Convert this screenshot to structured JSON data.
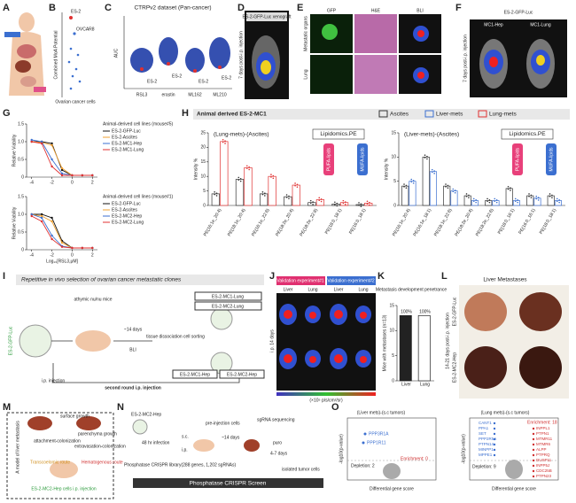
{
  "panel_labels": [
    "A",
    "B",
    "C",
    "D",
    "E",
    "F",
    "G",
    "H",
    "I",
    "J",
    "K",
    "L",
    "M",
    "N",
    "O"
  ],
  "B": {
    "ylabel": "Combined MoA Potential",
    "xlabel": "Ovarian cancer cells",
    "points": [
      "ES-2",
      "OVCAR8"
    ]
  },
  "C": {
    "title": "CTRPv2 dataset (Pan-cancer)",
    "ylabel": "AUC",
    "categories": [
      "RSL3",
      "erastin",
      "ML162",
      "ML210"
    ],
    "highlight": [
      "ES-2",
      "ES-2",
      "ES-2",
      "ES-2"
    ]
  },
  "D": {
    "title": "ES-2-GFP-Luc xenograft",
    "side": "7 days post-i.p. injection"
  },
  "E": {
    "columns": [
      "GFP",
      "H&E",
      "BLI"
    ],
    "rows": [
      "Metastatic organs",
      "Lung"
    ]
  },
  "F": {
    "title": "ES-2-GFP-Luc",
    "columns": [
      "MC1-Hep",
      "MC1-Lung"
    ],
    "side": "7 days post-i.p. injection"
  },
  "H": {
    "legend_title": "Animal derived ES-2-MC1"
  },
  "I": {
    "title": "Repetitive in vivo selection of ovarian cancer metastatic clones",
    "cell": "ES-2-GFP-Luc",
    "mice": "athymic nu/nu mice",
    "days": "~14 days",
    "bli": "BLI",
    "sorting": "tissue dissociation cell sorting",
    "first": "i.p. injection",
    "second": "second round i.p. injection",
    "clones": [
      "ES-2-MC1-Lung",
      "ES-2-MC2-Lung",
      "ES-2-MC1-Hep",
      "ES-2-MC2-Hep"
    ]
  },
  "J": {
    "experiments": [
      "Validation experiment#1",
      "Validation experiment#2"
    ],
    "columns": [
      "Liver",
      "Lung",
      "Liver",
      "Lung"
    ],
    "side": "i.p. 14 days",
    "scale": "(×10⁵ p/s/cm²/sr)"
  },
  "L": {
    "title": "Liver Metastases",
    "rows": [
      "ES-2-GFP-Luc",
      "ES-2-MC2-Hep"
    ],
    "side": "14-21 days post-i.p. injection"
  },
  "M": {
    "texts": [
      "surface growth",
      "parenchyma growth",
      "attachment-colonization",
      "extravasation-colonization",
      "Transcoelomic route",
      "Hematogenous route",
      "ES-2-MC2-Hep cells i.p. injection"
    ],
    "side": "A model of liver metastasis"
  },
  "N": {
    "cell": "ES-2-MC2-Hep",
    "infection": "48 hr infection",
    "library": "Phosphatase CRISPR library(288 genes, 1,202 sgRNAs)",
    "pre": "pre-injection cells",
    "seq": "sgRNA sequencing",
    "sc": "s.c.",
    "ip": "i.p.",
    "days": "~14 days",
    "puro": "puro",
    "days2": "4-7 days",
    "isolated": "isolated tumor cells",
    "banner": "Phosphatase CRISPR Screen"
  },
  "O": {
    "titles": [
      "(Liver mets)-(s.c tumors)",
      "(Lung mets)-(s.c tumors)"
    ],
    "xlabel": "Differential gene score",
    "ylabel": "-log10(p-value)",
    "left_notes": [
      "Depletion: 2",
      "Enrichment: 0"
    ],
    "right_notes": [
      "Depletion: 9",
      "Enrichment: 18"
    ],
    "left_genes": [
      "PPP3R1A",
      "PPP1R11"
    ],
    "right_genes": [
      "CANT1",
      "PPA1",
      "SET",
      "PPP2R5A",
      "PTPN14",
      "MINPP1",
      "MPPE1",
      "INPPL1",
      "PTPN1",
      "MTMR11",
      "MTMR6",
      "ALPP",
      "PTPRQ",
      "DUSP11",
      "INPP5J",
      "CDC25B",
      "PTPN23"
    ]
  },
  "chart_data": [
    {
      "type": "line",
      "title": "Animal-derived cell lines (mouse#5)",
      "ylabel": "Relative Viability",
      "x": [
        -4,
        -3,
        -2,
        -1,
        0,
        1,
        2
      ],
      "series": [
        {
          "name": "ES-2-GFP-Luc",
          "color": "#111111",
          "values": [
            1.0,
            1.0,
            0.95,
            0.2,
            0.05,
            0.05,
            0.05
          ]
        },
        {
          "name": "ES-2-Ascites",
          "color": "#f0a030",
          "values": [
            1.0,
            0.98,
            0.9,
            0.25,
            0.05,
            0.05,
            0.05
          ]
        },
        {
          "name": "ES-2-MC1-Hep",
          "color": "#3b6fd0",
          "values": [
            1.05,
            1.0,
            0.5,
            0.1,
            0.05,
            0.05,
            0.05
          ]
        },
        {
          "name": "ES-2-MC1-Lung",
          "color": "#e03030",
          "values": [
            1.0,
            0.95,
            0.3,
            0.05,
            0.05,
            0.05,
            0.05
          ]
        }
      ],
      "xlim": [
        -4.5,
        2.5
      ],
      "ylim": [
        0,
        1.5
      ],
      "yticks": [
        0,
        0.5,
        {
          "value": 1,
          "label": "1.0"
        },
        1.5
      ],
      "xticks": [
        -4,
        -2,
        0,
        2
      ]
    },
    {
      "type": "line",
      "title": "Animal-derived cell lines (mouse#1)",
      "ylabel": "Relative Viability",
      "xlabel": "Log₁₀[RSL3,μM]",
      "x": [
        -4,
        -3,
        -2,
        -1,
        0,
        1,
        2
      ],
      "series": [
        {
          "name": "ES-2-GFP-Luc",
          "color": "#111111",
          "values": [
            1.0,
            1.0,
            0.9,
            0.25,
            0.05,
            0.05,
            0.05
          ]
        },
        {
          "name": "ES-2-Ascites",
          "color": "#f0a030",
          "values": [
            1.0,
            0.95,
            0.8,
            0.2,
            0.05,
            0.05,
            0.05
          ]
        },
        {
          "name": "ES-2-MC2-Hep",
          "color": "#3b6fd0",
          "values": [
            1.0,
            0.9,
            0.4,
            0.1,
            0.05,
            0.05,
            0.05
          ]
        },
        {
          "name": "ES-2-MC2-Lung",
          "color": "#e03030",
          "values": [
            0.95,
            0.8,
            0.3,
            0.08,
            0.05,
            0.05,
            0.05
          ]
        }
      ],
      "xlim": [
        -4.5,
        2.5
      ],
      "ylim": [
        0,
        1.5
      ],
      "yticks": [
        0,
        0.5,
        {
          "value": 1,
          "label": "1.0"
        },
        1.5
      ],
      "xticks": [
        -4,
        -2,
        0,
        2
      ]
    },
    {
      "type": "bar",
      "title": "(Lung-mets)-(Ascites)",
      "ylabel": "Intensity %",
      "annotations": [
        "Lipidomics.PE",
        "PUFA-lipids",
        "MUFA-lipids"
      ],
      "categories": [
        "PE(16:1e_20:4)",
        "PE(18:1e_20:4)",
        "PE(16:1e_22:6)",
        "PE(18:2e_20:4)",
        "PE(18:2e_22:6)",
        "PE(18:0_18:1)",
        "PE(16:0_18:1)"
      ],
      "series": [
        {
          "name": "Ascites",
          "color": "#333333",
          "values": [
            4,
            9,
            4,
            3,
            1,
            0.5,
            0.3
          ]
        },
        {
          "name": "Lung-mets",
          "color": "#e03030",
          "values": [
            22,
            13,
            10,
            7,
            2,
            1,
            0.8
          ]
        }
      ],
      "ylim": [
        0,
        25
      ],
      "yticks": [
        0,
        5,
        10,
        15,
        20,
        25
      ]
    },
    {
      "type": "bar",
      "title": "(Liver-mets)-(Ascites)",
      "ylabel": "Intensity %",
      "annotations": [
        "Lipidomics.PE",
        "PUFA-lipids",
        "MUFA-lipids"
      ],
      "categories": [
        "PE(16:1e_20:4)",
        "PE(16:1e_18:1)",
        "PE(18:1e_22:6)",
        "PE(18:2e_20:4)",
        "PE(18:2e_22:6)",
        "PE(18:0_16:1)",
        "PE(16:0_16:1)",
        "PE(18:0_18:1)"
      ],
      "series": [
        {
          "color": "#333333",
          "values": [
            4,
            10,
            4,
            2,
            1,
            3.5,
            2,
            2
          ]
        },
        {
          "name": "Liver-mets",
          "color": "#3b6fd0",
          "values": [
            5,
            7,
            3,
            1,
            1,
            1,
            1.5,
            1
          ]
        }
      ],
      "ylim": [
        0,
        15
      ],
      "yticks": [
        0,
        5,
        10,
        15
      ]
    },
    {
      "type": "bar",
      "title": "Metastasis development penetrance",
      "ylabel": "Mice with metastases (n=13)",
      "annotations": [
        "100%",
        "100%"
      ],
      "categories": [
        "Liver",
        "Lung"
      ],
      "values": [
        13,
        13
      ],
      "colors": [
        "#222222",
        "#ffffff"
      ],
      "ylim": [
        0,
        15
      ],
      "yticks": [
        0,
        5,
        10,
        15
      ]
    }
  ]
}
